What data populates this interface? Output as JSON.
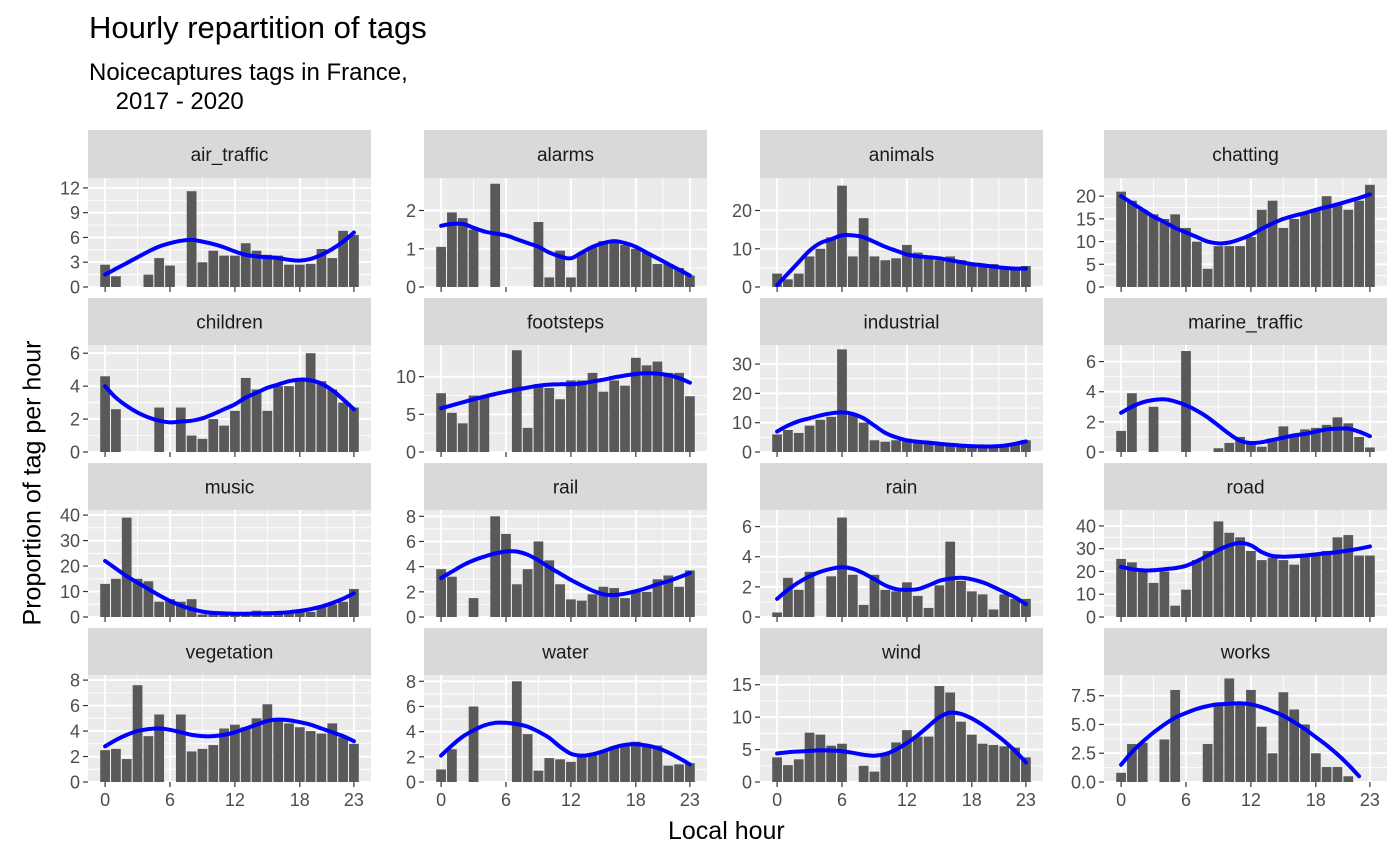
{
  "chart_data": {
    "type": "bar",
    "title": "Hourly repartition of tags",
    "subtitle": "Noicecaptures tags in France,\n    2017 - 2020",
    "xlabel": "Local hour",
    "ylabel": "Proportion of tag per hour",
    "x_ticks": [
      "0",
      "6",
      "12",
      "18",
      "23"
    ],
    "colors": {
      "bar": "#595959",
      "smooth": "#0000ff",
      "panel": "#ebebeb",
      "strip": "#d9d9d9",
      "grid": "#ffffff"
    },
    "facets": [
      {
        "name": "air_traffic",
        "ylim": [
          0,
          13.2
        ],
        "yticks": [
          {
            "v": 0,
            "l": "0"
          },
          {
            "v": 3,
            "l": "3"
          },
          {
            "v": 6,
            "l": "6"
          },
          {
            "v": 9,
            "l": "9"
          },
          {
            "v": 12,
            "l": "12"
          }
        ],
        "values": [
          2.7,
          1.3,
          0,
          0,
          1.5,
          3.5,
          2.6,
          0,
          11.6,
          3.0,
          4.4,
          3.8,
          3.8,
          5.3,
          4.4,
          3.9,
          3.8,
          2.7,
          2.7,
          2.8,
          4.6,
          3.5,
          6.8,
          6.3
        ],
        "smooth": [
          1.5,
          2.2,
          2.9,
          3.6,
          4.3,
          4.9,
          5.3,
          5.6,
          5.7,
          5.5,
          5.2,
          4.8,
          4.3,
          3.9,
          3.7,
          3.6,
          3.5,
          3.3,
          3.2,
          3.4,
          3.9,
          4.6,
          5.5,
          6.6
        ]
      },
      {
        "name": "alarms",
        "ylim": [
          0,
          2.85
        ],
        "yticks": [
          {
            "v": 0,
            "l": "0"
          },
          {
            "v": 1,
            "l": "1"
          },
          {
            "v": 2,
            "l": "2"
          }
        ],
        "values": [
          1.05,
          1.95,
          1.8,
          1.5,
          0,
          2.7,
          0,
          0,
          0,
          1.7,
          0.25,
          0.95,
          0.25,
          0.9,
          1.05,
          1.2,
          1.2,
          1.1,
          1.0,
          0.9,
          0.6,
          0.6,
          0.5,
          0.3
        ],
        "smooth": [
          1.6,
          1.65,
          1.65,
          1.55,
          1.45,
          1.4,
          1.35,
          1.25,
          1.15,
          1.05,
          0.9,
          0.8,
          0.75,
          0.9,
          1.05,
          1.15,
          1.2,
          1.15,
          1.05,
          0.9,
          0.75,
          0.6,
          0.45,
          0.3
        ]
      },
      {
        "name": "animals",
        "ylim": [
          0,
          28.5
        ],
        "yticks": [
          {
            "v": 0,
            "l": "0"
          },
          {
            "v": 10,
            "l": "10"
          },
          {
            "v": 20,
            "l": "20"
          }
        ],
        "values": [
          3.5,
          2,
          3.5,
          8,
          10,
          13,
          26.5,
          8,
          18,
          8,
          7,
          7.5,
          11,
          9,
          8,
          7,
          8,
          7,
          6,
          6,
          6,
          5,
          5,
          5.5
        ],
        "smooth": [
          0.5,
          3.5,
          6.5,
          9.5,
          11.5,
          12.5,
          13.5,
          13.5,
          13,
          11.8,
          10.5,
          9.5,
          8.5,
          8,
          7.8,
          7.5,
          7,
          6.5,
          6,
          5.7,
          5.3,
          5,
          4.8,
          4.8
        ]
      },
      {
        "name": "chatting",
        "ylim": [
          0,
          24
        ],
        "yticks": [
          {
            "v": 0,
            "l": "0"
          },
          {
            "v": 5,
            "l": "5"
          },
          {
            "v": 10,
            "l": "10"
          },
          {
            "v": 15,
            "l": "15"
          },
          {
            "v": 20,
            "l": "20"
          }
        ],
        "values": [
          21,
          19,
          17,
          16,
          15,
          16,
          13,
          10,
          4,
          9,
          9,
          9,
          11,
          17,
          19,
          13,
          15,
          16,
          17,
          20,
          18,
          17,
          19,
          22.5
        ],
        "smooth": [
          20,
          18.5,
          17,
          15.5,
          14.3,
          13,
          12,
          11,
          10,
          9.6,
          9.8,
          10.5,
          11.5,
          12.8,
          14,
          15,
          15.7,
          16.3,
          17,
          17.6,
          18.2,
          18.9,
          19.6,
          20.4
        ]
      },
      {
        "name": "children",
        "ylim": [
          0,
          6.5
        ],
        "yticks": [
          {
            "v": 0,
            "l": "0"
          },
          {
            "v": 2,
            "l": "2"
          },
          {
            "v": 4,
            "l": "4"
          },
          {
            "v": 6,
            "l": "6"
          }
        ],
        "values": [
          4.6,
          2.6,
          0,
          0,
          0,
          2.7,
          0,
          2.7,
          1.0,
          0.8,
          2.0,
          1.6,
          2.5,
          4.5,
          3.8,
          2.5,
          4.0,
          4.0,
          4.3,
          6.0,
          4.3,
          3.8,
          3.0,
          2.7
        ],
        "smooth": [
          4.0,
          3.3,
          2.8,
          2.4,
          2.1,
          1.9,
          1.8,
          1.85,
          1.9,
          2.05,
          2.3,
          2.6,
          2.9,
          3.3,
          3.6,
          3.9,
          4.1,
          4.3,
          4.4,
          4.35,
          4.15,
          3.75,
          3.2,
          2.6
        ]
      },
      {
        "name": "footsteps",
        "ylim": [
          0,
          14.2
        ],
        "yticks": [
          {
            "v": 0,
            "l": "0"
          },
          {
            "v": 5,
            "l": "5"
          },
          {
            "v": 10,
            "l": "10"
          }
        ],
        "values": [
          7.8,
          5.2,
          3.8,
          7.5,
          7.5,
          0,
          0,
          13.5,
          3.2,
          9,
          8.5,
          7,
          9.5,
          9.5,
          10.5,
          8,
          9.5,
          8.8,
          12.5,
          11.5,
          12,
          10.5,
          10.5,
          7.4
        ],
        "smooth": [
          5.8,
          6.2,
          6.6,
          7,
          7.35,
          7.7,
          8,
          8.3,
          8.55,
          8.8,
          8.95,
          9,
          9,
          9.1,
          9.35,
          9.6,
          9.9,
          10.15,
          10.35,
          10.45,
          10.4,
          10.2,
          9.8,
          9.2
        ]
      },
      {
        "name": "industrial",
        "ylim": [
          0,
          36.5
        ],
        "yticks": [
          {
            "v": 0,
            "l": "0"
          },
          {
            "v": 10,
            "l": "10"
          },
          {
            "v": 20,
            "l": "20"
          },
          {
            "v": 30,
            "l": "30"
          }
        ],
        "values": [
          6,
          7.5,
          6.5,
          9,
          11,
          12,
          35,
          13,
          10,
          4,
          3.5,
          4,
          4.5,
          4,
          3,
          2.5,
          2.5,
          2.5,
          2,
          2,
          2,
          2,
          2.5,
          4
        ],
        "smooth": [
          7,
          9,
          10.5,
          11.5,
          12.5,
          13.2,
          13.5,
          13,
          11.5,
          9,
          6.5,
          5,
          4,
          3.5,
          3.2,
          2.8,
          2.5,
          2.2,
          2,
          1.9,
          1.9,
          2.2,
          2.8,
          3.6
        ]
      },
      {
        "name": "marine_traffic",
        "ylim": [
          0,
          7.1
        ],
        "yticks": [
          {
            "v": 0,
            "l": "0"
          },
          {
            "v": 2,
            "l": "2"
          },
          {
            "v": 4,
            "l": "4"
          },
          {
            "v": 6,
            "l": "6"
          }
        ],
        "values": [
          1.4,
          3.9,
          0,
          3.0,
          0,
          0,
          6.7,
          0,
          0,
          0.25,
          0.6,
          1.0,
          0.5,
          0.35,
          0.9,
          1.7,
          1.1,
          1.5,
          1.6,
          1.8,
          2.3,
          1.9,
          1.0,
          0.3
        ],
        "smooth": [
          2.6,
          3.0,
          3.3,
          3.45,
          3.5,
          3.35,
          3.1,
          2.75,
          2.3,
          1.75,
          1.2,
          0.75,
          0.6,
          0.65,
          0.8,
          0.95,
          1.1,
          1.2,
          1.35,
          1.5,
          1.55,
          1.55,
          1.35,
          1.05
        ]
      },
      {
        "name": "music",
        "ylim": [
          0,
          42
        ],
        "yticks": [
          {
            "v": 0,
            "l": "0"
          },
          {
            "v": 10,
            "l": "10"
          },
          {
            "v": 20,
            "l": "20"
          },
          {
            "v": 30,
            "l": "30"
          },
          {
            "v": 40,
            "l": "40"
          }
        ],
        "values": [
          13,
          15,
          39,
          15,
          14,
          6,
          7,
          6,
          7,
          1,
          1.5,
          1.5,
          1.5,
          1.5,
          2.5,
          2,
          2,
          2,
          2,
          2,
          4,
          5,
          6,
          11
        ],
        "smooth": [
          22,
          19,
          16,
          13.5,
          11,
          8.5,
          6.3,
          4.5,
          3.1,
          2.1,
          1.6,
          1.4,
          1.3,
          1.3,
          1.35,
          1.45,
          1.6,
          1.9,
          2.4,
          3.1,
          4.1,
          5.5,
          7.2,
          9.3
        ]
      },
      {
        "name": "rail",
        "ylim": [
          0,
          8.5
        ],
        "yticks": [
          {
            "v": 0,
            "l": "0"
          },
          {
            "v": 2,
            "l": "2"
          },
          {
            "v": 4,
            "l": "4"
          },
          {
            "v": 6,
            "l": "6"
          },
          {
            "v": 8,
            "l": "8"
          }
        ],
        "values": [
          3.8,
          3.2,
          0,
          1.5,
          0,
          8.0,
          6.6,
          2.6,
          3.8,
          6.0,
          4.5,
          2.6,
          1.4,
          1.3,
          1.8,
          2.4,
          2.3,
          1.5,
          2.0,
          2.0,
          3.0,
          3.3,
          2.4,
          3.7
        ],
        "smooth": [
          3.1,
          3.6,
          4.1,
          4.5,
          4.8,
          5.05,
          5.2,
          5.2,
          4.95,
          4.5,
          3.95,
          3.45,
          2.95,
          2.5,
          2.1,
          1.8,
          1.75,
          1.85,
          2.05,
          2.3,
          2.6,
          2.85,
          3.15,
          3.5
        ]
      },
      {
        "name": "rain",
        "ylim": [
          0,
          7.1
        ],
        "yticks": [
          {
            "v": 0,
            "l": "0"
          },
          {
            "v": 2,
            "l": "2"
          },
          {
            "v": 4,
            "l": "4"
          },
          {
            "v": 6,
            "l": "6"
          }
        ],
        "values": [
          0.3,
          2.6,
          1.8,
          3.0,
          0,
          2.7,
          6.6,
          2.8,
          0.8,
          2.8,
          1.8,
          1.7,
          2.3,
          1.4,
          0.6,
          2.1,
          5.0,
          2.4,
          1.7,
          1.5,
          0.5,
          1.5,
          1.2,
          1.2
        ],
        "smooth": [
          1.2,
          1.8,
          2.3,
          2.7,
          3.0,
          3.2,
          3.3,
          3.2,
          2.9,
          2.5,
          2.1,
          1.85,
          1.8,
          1.85,
          2.1,
          2.4,
          2.55,
          2.6,
          2.5,
          2.3,
          2.0,
          1.65,
          1.3,
          0.85
        ]
      },
      {
        "name": "road",
        "ylim": [
          0,
          47
        ],
        "yticks": [
          {
            "v": 0,
            "l": "0"
          },
          {
            "v": 10,
            "l": "10"
          },
          {
            "v": 20,
            "l": "20"
          },
          {
            "v": 30,
            "l": "30"
          },
          {
            "v": 40,
            "l": "40"
          }
        ],
        "values": [
          25.5,
          24,
          21,
          15,
          20,
          5,
          12,
          25,
          29,
          42,
          37,
          35,
          29,
          25,
          26,
          25,
          23,
          27,
          28,
          29,
          35,
          36,
          27,
          27
        ],
        "smooth": [
          22,
          21,
          20.5,
          20.5,
          21,
          21.5,
          22.5,
          24.5,
          27,
          29.5,
          31.5,
          32.5,
          31.5,
          28.5,
          26.8,
          26.5,
          26.7,
          27,
          27.5,
          28,
          28.5,
          29.2,
          30,
          31
        ]
      },
      {
        "name": "vegetation",
        "ylim": [
          0,
          8.4
        ],
        "yticks": [
          {
            "v": 0,
            "l": "0"
          },
          {
            "v": 2,
            "l": "2"
          },
          {
            "v": 4,
            "l": "4"
          },
          {
            "v": 6,
            "l": "6"
          },
          {
            "v": 8,
            "l": "8"
          }
        ],
        "values": [
          2.5,
          2.6,
          1.8,
          7.6,
          3.6,
          5.3,
          0,
          5.3,
          2.4,
          2.6,
          2.9,
          4.2,
          4.5,
          4.3,
          5.0,
          6.1,
          4.8,
          4.6,
          4.3,
          4.0,
          3.8,
          4.6,
          3.5,
          3.0
        ],
        "smooth": [
          2.8,
          3.3,
          3.7,
          4.0,
          4.15,
          4.2,
          4.1,
          3.9,
          3.7,
          3.6,
          3.6,
          3.7,
          3.9,
          4.2,
          4.5,
          4.8,
          4.9,
          4.85,
          4.7,
          4.5,
          4.2,
          3.9,
          3.6,
          3.2
        ]
      },
      {
        "name": "water",
        "ylim": [
          0,
          8.5
        ],
        "yticks": [
          {
            "v": 0,
            "l": "0"
          },
          {
            "v": 2,
            "l": "2"
          },
          {
            "v": 4,
            "l": "4"
          },
          {
            "v": 6,
            "l": "6"
          },
          {
            "v": 8,
            "l": "8"
          }
        ],
        "values": [
          1.0,
          2.6,
          0,
          6.0,
          0,
          0,
          0,
          8.0,
          3.8,
          0.9,
          1.9,
          1.8,
          1.6,
          2.1,
          2.2,
          2.5,
          2.8,
          3.0,
          3.2,
          2.8,
          2.9,
          1.3,
          1.4,
          1.5
        ],
        "smooth": [
          2.1,
          2.9,
          3.6,
          4.1,
          4.5,
          4.7,
          4.7,
          4.6,
          4.4,
          4.0,
          3.5,
          2.8,
          2.25,
          2.1,
          2.2,
          2.45,
          2.75,
          2.95,
          3.0,
          2.9,
          2.7,
          2.35,
          1.9,
          1.4
        ]
      },
      {
        "name": "wind",
        "ylim": [
          0,
          16.5
        ],
        "yticks": [
          {
            "v": 0,
            "l": "0"
          },
          {
            "v": 5,
            "l": "5"
          },
          {
            "v": 10,
            "l": "10"
          },
          {
            "v": 15,
            "l": "15"
          }
        ],
        "values": [
          3.8,
          2.6,
          3.5,
          7.6,
          7.3,
          5.6,
          5.9,
          0,
          2.5,
          1.6,
          4.4,
          6.1,
          8.0,
          7.0,
          7.0,
          14.8,
          13.8,
          9.3,
          7.3,
          5.9,
          5.7,
          5.5,
          5.3,
          3.8
        ],
        "smooth": [
          4.4,
          4.6,
          4.7,
          4.8,
          4.9,
          4.85,
          4.75,
          4.5,
          4.2,
          4.05,
          4.3,
          5.0,
          6.0,
          7.2,
          8.6,
          10.0,
          10.7,
          10.5,
          9.8,
          8.8,
          7.6,
          6.3,
          4.8,
          3.0
        ]
      },
      {
        "name": "works",
        "ylim": [
          0,
          9.3
        ],
        "yticks": [
          {
            "v": 0,
            "l": "0.0"
          },
          {
            "v": 2.5,
            "l": "2.5"
          },
          {
            "v": 5,
            "l": "5.0"
          },
          {
            "v": 7.5,
            "l": "7.5"
          }
        ],
        "values": [
          0.8,
          3.3,
          3.4,
          0,
          3.7,
          8.0,
          0,
          0,
          3.3,
          6.9,
          9.0,
          6.7,
          8.0,
          4.8,
          2.5,
          7.8,
          6.3,
          5.0,
          2.5,
          1.3,
          1.3,
          0.5,
          0,
          0
        ],
        "smooth": [
          1.5,
          2.6,
          3.5,
          4.3,
          5.0,
          5.6,
          6.0,
          6.35,
          6.6,
          6.75,
          6.8,
          6.85,
          6.75,
          6.5,
          6.15,
          5.75,
          5.2,
          4.6,
          3.9,
          3.2,
          2.4,
          1.5,
          0.5,
          null
        ]
      }
    ]
  }
}
